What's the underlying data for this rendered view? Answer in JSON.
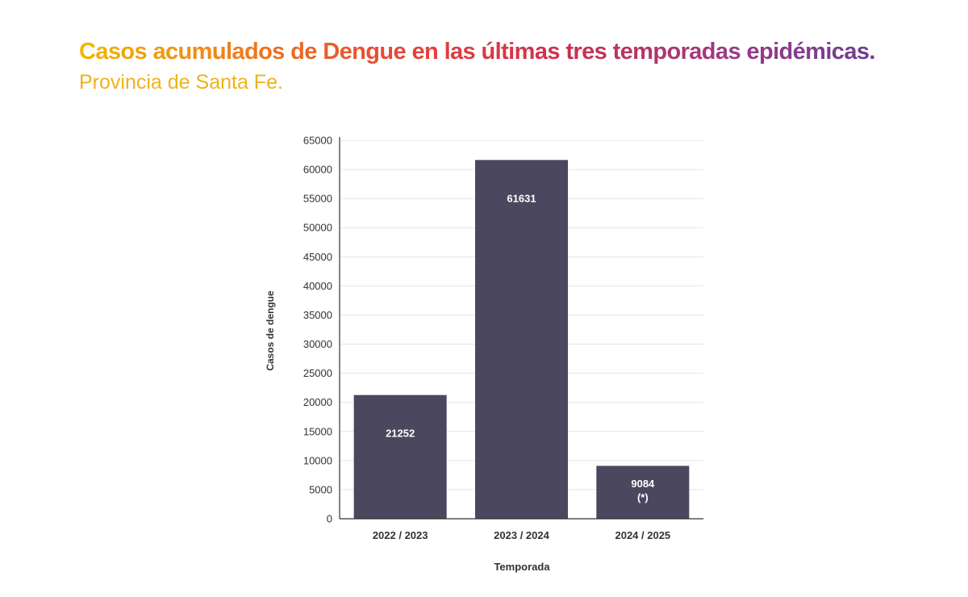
{
  "title": "Casos acumulados de Dengue en las últimas tres temporadas epidémicas.",
  "subtitle": "Provincia de Santa Fe.",
  "colors": {
    "bar": "#4a475e",
    "axis": "#333333",
    "grid": "#e4e4e4"
  },
  "chart_data": {
    "type": "bar",
    "categories": [
      "2022 / 2023",
      "2023 / 2024",
      "2024 / 2025"
    ],
    "values": [
      21252,
      61631,
      9084
    ],
    "data_labels": [
      "21252",
      "61631",
      "9084\n(*)"
    ],
    "xlabel": "Temporada",
    "ylabel": "Casos de dengue",
    "ylim": [
      0,
      65000
    ],
    "yticks": [
      0,
      5000,
      10000,
      15000,
      20000,
      25000,
      30000,
      35000,
      40000,
      45000,
      50000,
      55000,
      60000,
      65000
    ],
    "grid": true
  }
}
